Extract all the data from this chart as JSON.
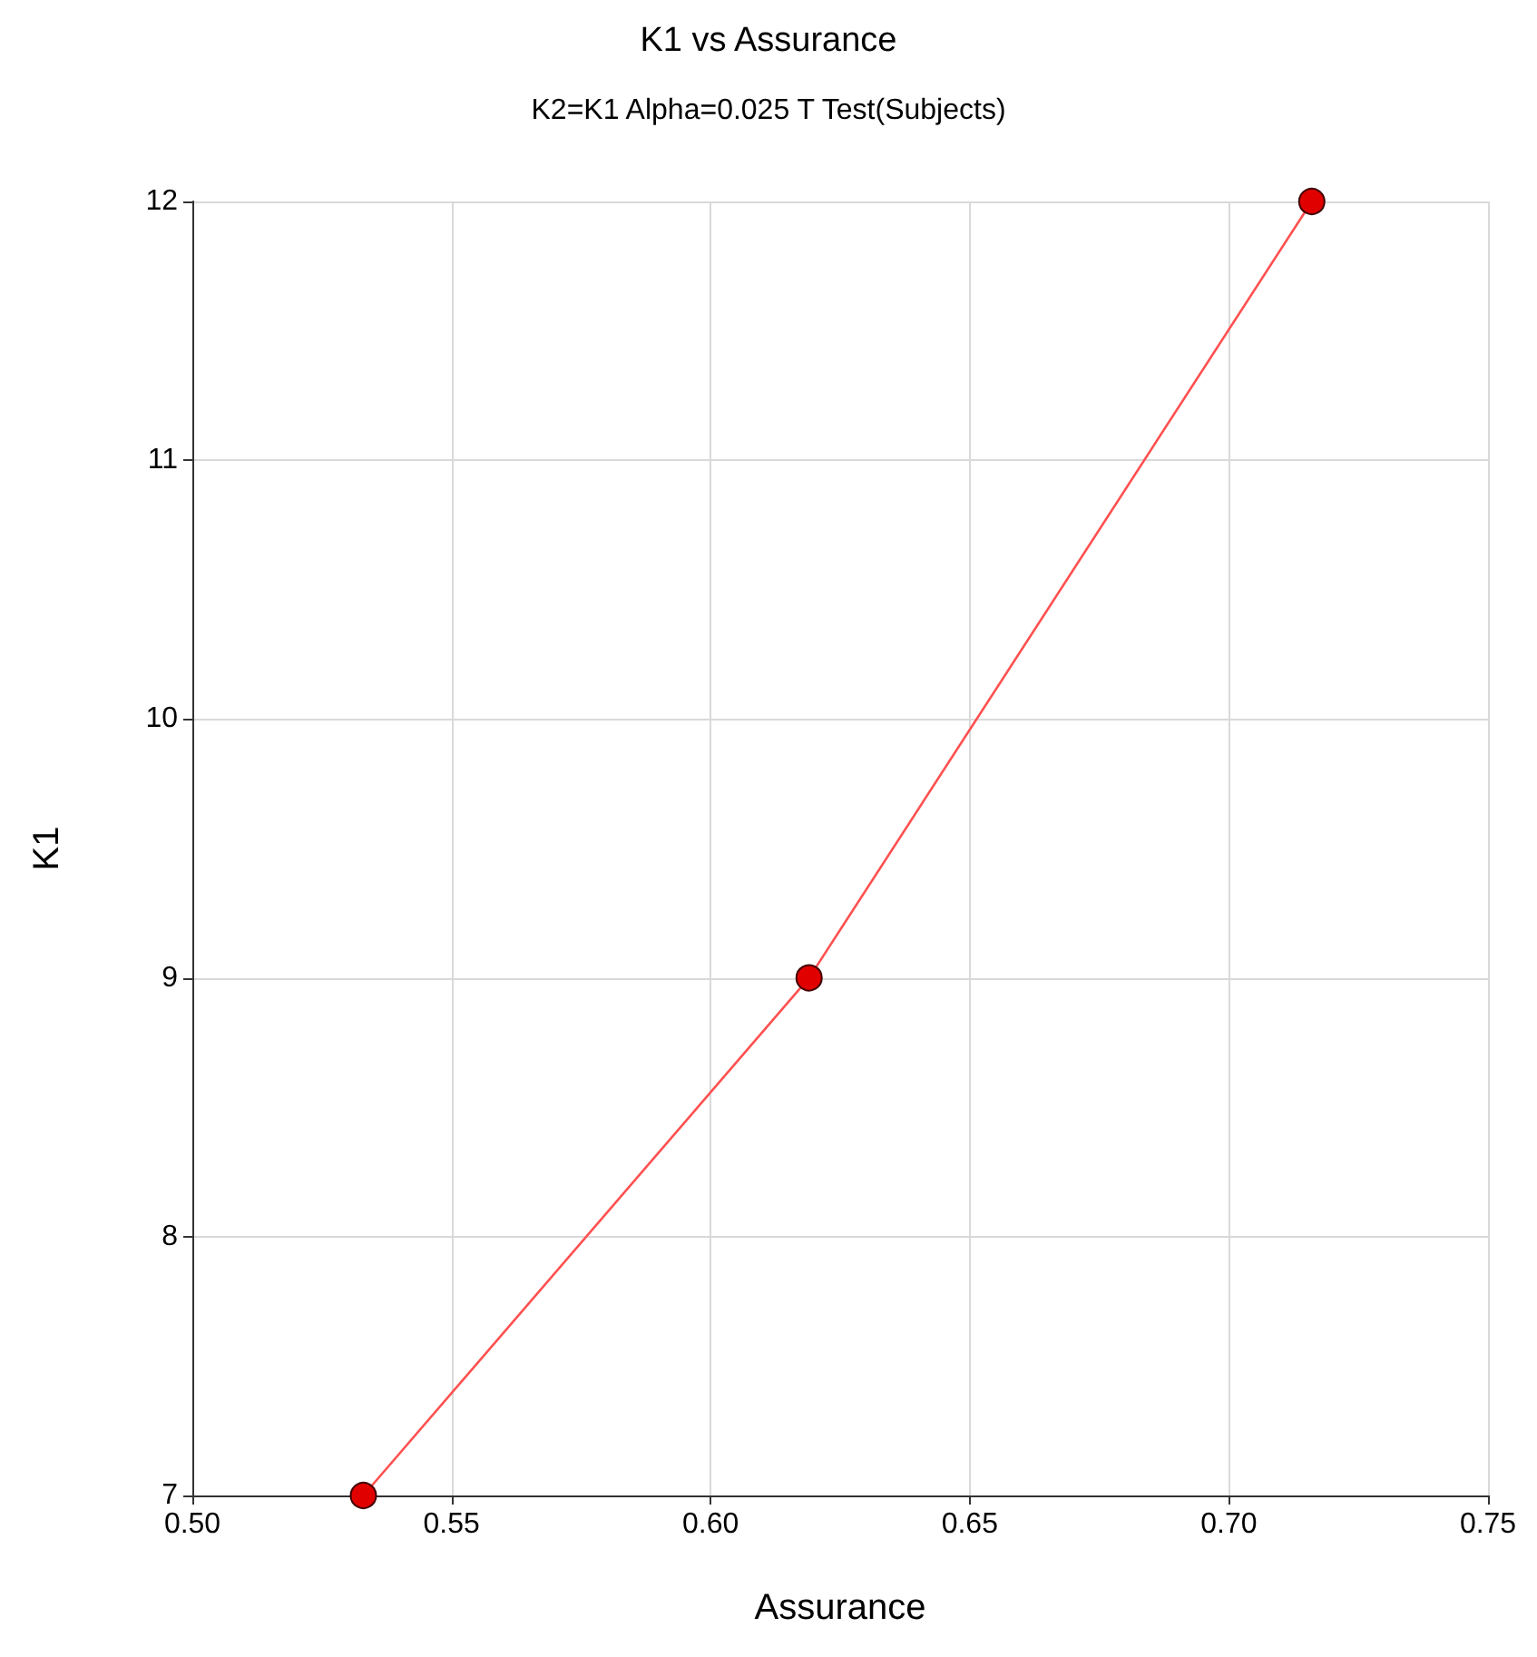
{
  "chart_data": {
    "type": "line",
    "title": "K1 vs Assurance",
    "subtitle": "K2=K1 Alpha=0.025 T Test(Subjects)",
    "xlabel": "Assurance",
    "ylabel": "K1",
    "x": [
      0.533,
      0.619,
      0.716
    ],
    "series": [
      {
        "color": "#ff5050",
        "values": [
          7,
          9,
          12
        ]
      }
    ],
    "xlim": [
      0.5,
      0.75
    ],
    "xticks": [
      {
        "value": 0.5,
        "label": "0.50"
      },
      {
        "value": 0.55,
        "label": "0.55"
      },
      {
        "value": 0.6,
        "label": "0.60"
      },
      {
        "value": 0.65,
        "label": "0.65"
      },
      {
        "value": 0.7,
        "label": "0.70"
      },
      {
        "value": 0.75,
        "label": "0.75"
      }
    ],
    "ylim": [
      7,
      12
    ],
    "yticks": [
      7,
      8,
      9,
      10,
      11,
      12
    ],
    "grid": true,
    "marker": "circle",
    "line_style": "solid"
  }
}
